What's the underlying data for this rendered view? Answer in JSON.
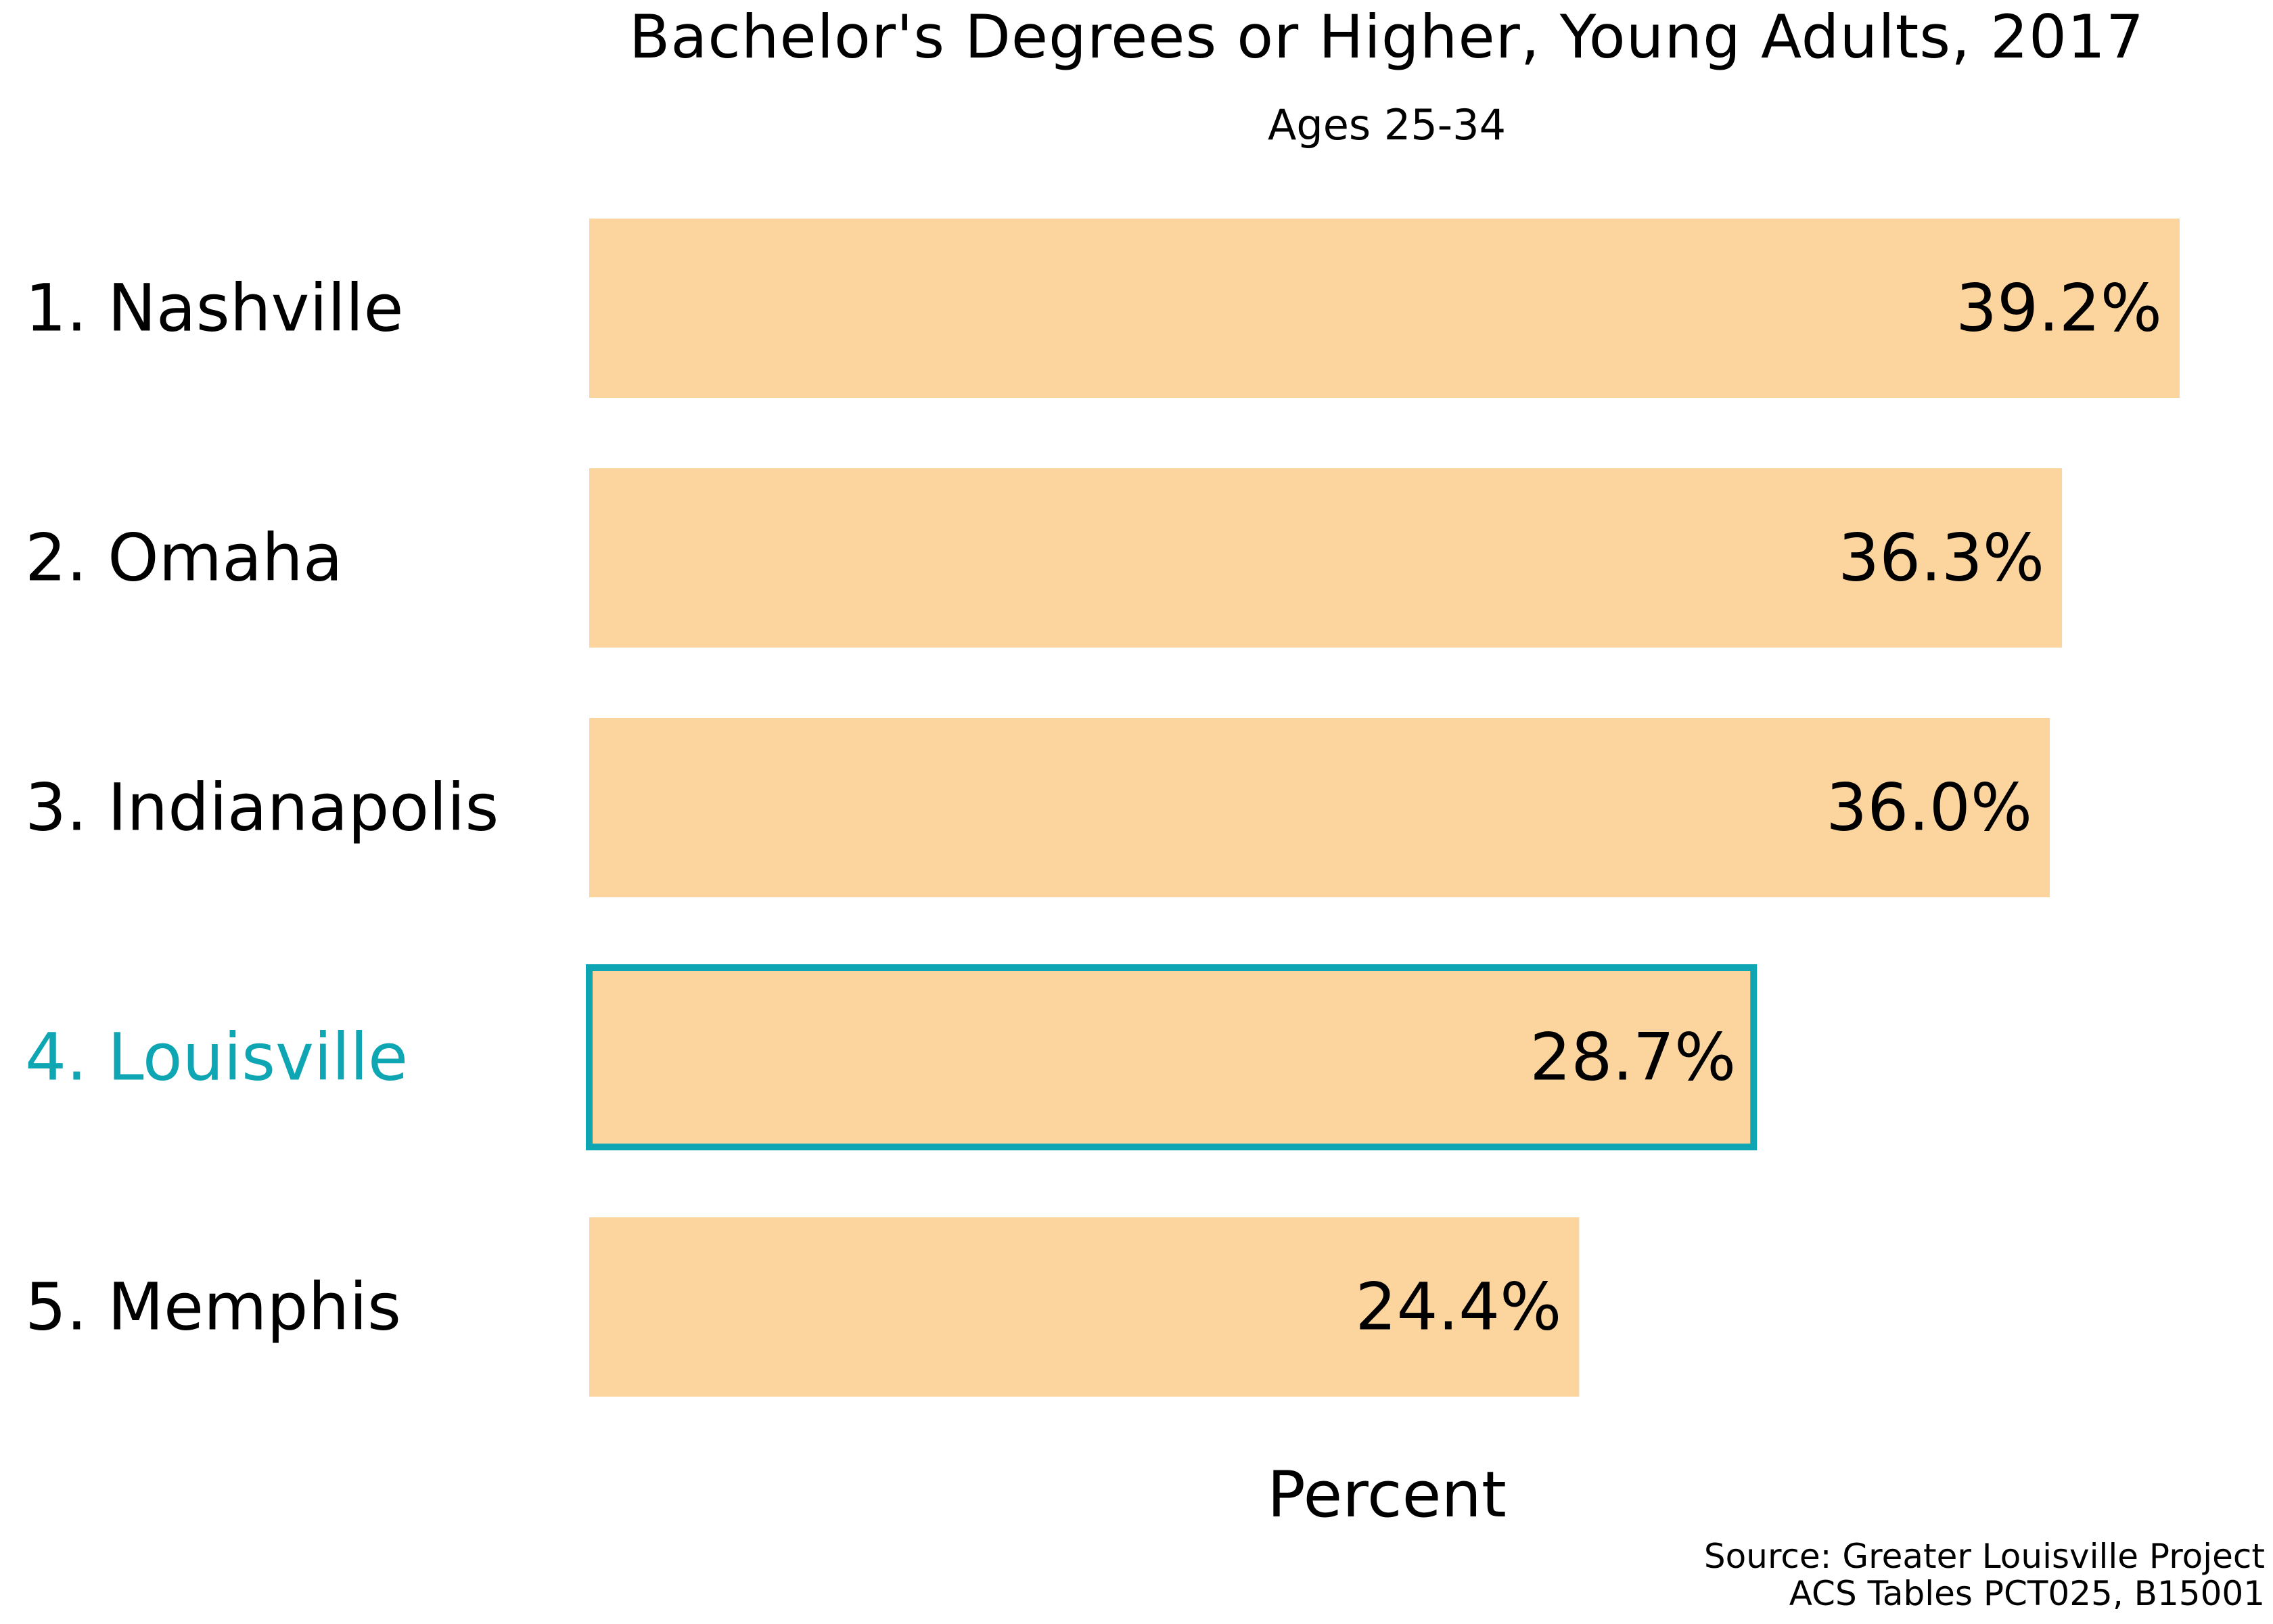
{
  "chart_data": {
    "type": "bar",
    "orientation": "horizontal",
    "title": "Bachelor's Degrees or Higher, Young Adults, 2017",
    "subtitle": "Ages 25-34",
    "xlabel": "Percent",
    "ylabel": "",
    "categories": [
      "1. Nashville",
      "2. Omaha",
      "3. Indianapolis",
      "4. Louisville",
      "5. Memphis"
    ],
    "values": [
      39.2,
      36.3,
      36.0,
      28.7,
      24.4
    ],
    "value_labels": [
      "39.2%",
      "36.3%",
      "36.0%",
      "28.7%",
      "24.4%"
    ],
    "highlighted_category": "4. Louisville",
    "xlim": [
      0,
      39.2
    ],
    "grid": false,
    "legend": "none",
    "colors": {
      "bar_fill": "#fcd59e",
      "highlight": "#0fa6b3",
      "text": "#000000"
    }
  },
  "source": {
    "line1": "Source: Greater Louisville Project",
    "line2": "ACS Tables PCT025, B15001"
  }
}
